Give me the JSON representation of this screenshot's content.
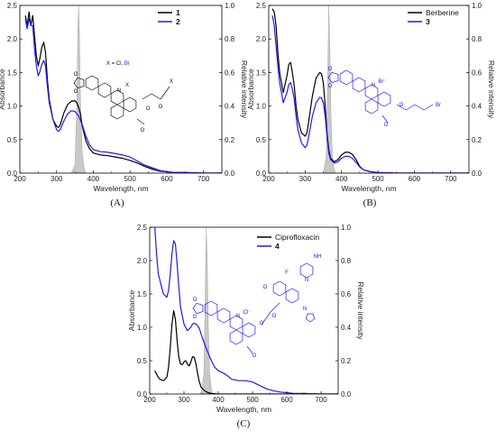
{
  "chart_data": [
    {
      "id": "A",
      "type": "line",
      "caption": "(A)",
      "xlabel": "Wavelength, nm",
      "ylabel": "Absorbance",
      "ylabel_right": "Relative intensity",
      "xlim": [
        200,
        750
      ],
      "ylim": [
        0,
        2.5
      ],
      "ylim_right": [
        0,
        1.0
      ],
      "xticks": [
        200,
        300,
        400,
        500,
        600,
        700
      ],
      "yticks": [
        0.0,
        0.5,
        1.0,
        1.5,
        2.0,
        2.5
      ],
      "yticks_right": [
        0.0,
        0.2,
        0.4,
        0.6,
        0.8,
        1.0
      ],
      "structure_label": {
        "prefix": "X = Cl, ",
        "highlight": "Br",
        "highlight_color": "#1a1aff"
      },
      "structure_atoms": [
        "O",
        "O",
        "O",
        "O",
        "O",
        "N",
        "X",
        "X"
      ],
      "emission": {
        "color": "#c8c8c8",
        "x": [
          340,
          350,
          355,
          358,
          360,
          362,
          365,
          370,
          375,
          380
        ],
        "y": [
          0,
          0.05,
          0.4,
          0.85,
          1.0,
          0.85,
          0.45,
          0.12,
          0.03,
          0
        ]
      },
      "series": [
        {
          "name": "1",
          "color": "#000000",
          "x": [
            215,
            220,
            225,
            230,
            235,
            240,
            245,
            250,
            255,
            260,
            265,
            270,
            275,
            280,
            290,
            300,
            305,
            310,
            320,
            330,
            340,
            350,
            355,
            360,
            365,
            370,
            380,
            390,
            400,
            420,
            440,
            460,
            480,
            500,
            520,
            540,
            560,
            580,
            600,
            620,
            650,
            700,
            750
          ],
          "y": [
            2.35,
            2.2,
            2.4,
            2.2,
            2.35,
            2.05,
            1.75,
            1.6,
            1.72,
            1.88,
            1.95,
            1.8,
            1.4,
            1.1,
            0.8,
            0.7,
            0.68,
            0.72,
            0.9,
            1.02,
            1.07,
            1.08,
            1.05,
            0.98,
            0.88,
            0.7,
            0.48,
            0.36,
            0.3,
            0.27,
            0.26,
            0.24,
            0.22,
            0.19,
            0.15,
            0.1,
            0.06,
            0.03,
            0.02,
            0.01,
            0.01,
            0.0,
            0.0
          ]
        },
        {
          "name": "2",
          "color": "#1a1aff",
          "x": [
            215,
            220,
            225,
            230,
            235,
            240,
            245,
            250,
            255,
            260,
            265,
            270,
            275,
            280,
            290,
            300,
            305,
            310,
            320,
            330,
            340,
            350,
            360,
            370,
            380,
            390,
            400,
            420,
            440,
            460,
            480,
            500,
            520,
            540,
            560,
            580,
            600,
            620,
            650,
            700,
            750
          ],
          "y": [
            2.3,
            2.15,
            2.3,
            2.2,
            2.2,
            1.85,
            1.6,
            1.45,
            1.52,
            1.62,
            1.68,
            1.6,
            1.3,
            1.05,
            0.8,
            0.65,
            0.62,
            0.65,
            0.78,
            0.88,
            0.93,
            0.92,
            0.85,
            0.72,
            0.55,
            0.42,
            0.35,
            0.32,
            0.31,
            0.29,
            0.27,
            0.24,
            0.18,
            0.12,
            0.08,
            0.04,
            0.02,
            0.01,
            0.01,
            0.0,
            0.0
          ]
        }
      ]
    },
    {
      "id": "B",
      "type": "line",
      "caption": "(B)",
      "xlabel": "Wavelength, nm",
      "ylabel": "Absorbance",
      "ylabel_right": "Relative intensity",
      "xlim": [
        200,
        750
      ],
      "ylim": [
        0,
        2.5
      ],
      "ylim_right": [
        0,
        1.0
      ],
      "xticks": [
        200,
        300,
        400,
        500,
        600,
        700
      ],
      "yticks": [
        0.0,
        0.5,
        1.0,
        1.5,
        2.0,
        2.5
      ],
      "yticks_right": [
        0.0,
        0.2,
        0.4,
        0.6,
        0.8,
        1.0
      ],
      "structure_atoms": [
        "O",
        "O",
        "O",
        "O",
        "N",
        "Br⁻",
        "Br"
      ],
      "emission": {
        "color": "#c8c8c8",
        "x": [
          350,
          358,
          362,
          365,
          368,
          371,
          375,
          380,
          385
        ],
        "y": [
          0,
          0.1,
          0.6,
          1.0,
          0.75,
          0.35,
          0.1,
          0.02,
          0
        ]
      },
      "series": [
        {
          "name": "Berberine",
          "color": "#000000",
          "x": [
            210,
            215,
            220,
            225,
            230,
            240,
            250,
            255,
            260,
            265,
            270,
            275,
            280,
            290,
            300,
            305,
            310,
            320,
            330,
            340,
            345,
            350,
            355,
            360,
            365,
            370,
            380,
            390,
            400,
            410,
            420,
            430,
            440,
            450,
            460,
            480,
            500,
            550,
            600,
            650,
            700,
            750
          ],
          "y": [
            2.45,
            2.4,
            2.2,
            1.8,
            1.5,
            1.2,
            1.45,
            1.62,
            1.65,
            1.5,
            1.3,
            1.0,
            0.8,
            0.6,
            0.55,
            0.6,
            0.78,
            1.15,
            1.42,
            1.5,
            1.48,
            1.35,
            1.0,
            0.6,
            0.35,
            0.22,
            0.17,
            0.2,
            0.27,
            0.31,
            0.31,
            0.28,
            0.2,
            0.1,
            0.05,
            0.02,
            0.01,
            0.0,
            0.0,
            0.0,
            0.0,
            0.0
          ]
        },
        {
          "name": "3",
          "color": "#1a1aff",
          "x": [
            210,
            215,
            220,
            225,
            230,
            240,
            250,
            255,
            260,
            265,
            270,
            275,
            280,
            290,
            300,
            305,
            310,
            320,
            330,
            340,
            345,
            350,
            355,
            360,
            365,
            370,
            380,
            390,
            400,
            410,
            420,
            430,
            440,
            450,
            460,
            480,
            500,
            550,
            600,
            650,
            700,
            750
          ],
          "y": [
            2.35,
            2.2,
            1.9,
            1.6,
            1.35,
            1.05,
            1.2,
            1.32,
            1.35,
            1.25,
            1.1,
            0.85,
            0.65,
            0.45,
            0.38,
            0.42,
            0.55,
            0.85,
            1.05,
            1.13,
            1.12,
            1.05,
            0.85,
            0.55,
            0.3,
            0.2,
            0.15,
            0.17,
            0.22,
            0.25,
            0.25,
            0.22,
            0.16,
            0.09,
            0.05,
            0.02,
            0.01,
            0.0,
            0.0,
            0.0,
            0.0,
            0.0
          ]
        }
      ]
    },
    {
      "id": "C",
      "type": "line",
      "caption": "(C)",
      "xlabel": "Wavelength, nm",
      "ylabel": "Absorbance",
      "ylabel_right": "Relative intensity",
      "xlim": [
        200,
        750
      ],
      "ylim": [
        0,
        2.5
      ],
      "ylim_right": [
        0,
        1.0
      ],
      "xticks": [
        200,
        300,
        400,
        500,
        600,
        700
      ],
      "yticks": [
        0.0,
        0.5,
        1.0,
        1.5,
        2.0,
        2.5
      ],
      "yticks_right": [
        0.0,
        0.2,
        0.4,
        0.6,
        0.8,
        1.0
      ],
      "structure_atoms": [
        "O",
        "O",
        "O",
        "O",
        "O",
        "O",
        "N",
        "N",
        "N",
        "NH",
        "F",
        "Cl⁻"
      ],
      "emission": {
        "color": "#c8c8c8",
        "x": [
          350,
          358,
          362,
          365,
          368,
          371,
          375,
          380,
          385
        ],
        "y": [
          0,
          0.12,
          0.6,
          1.0,
          0.8,
          0.4,
          0.12,
          0.03,
          0
        ]
      },
      "series": [
        {
          "name": "Ciprofloxacin",
          "color": "#000000",
          "x": [
            215,
            220,
            225,
            230,
            240,
            250,
            255,
            260,
            265,
            270,
            275,
            280,
            285,
            290,
            295,
            300,
            305,
            310,
            315,
            320,
            325,
            330,
            335,
            340,
            345,
            350,
            360,
            370,
            380,
            400,
            450,
            500,
            600,
            700,
            750
          ],
          "y": [
            0.35,
            0.3,
            0.25,
            0.22,
            0.2,
            0.25,
            0.4,
            0.7,
            1.05,
            1.25,
            1.12,
            0.8,
            0.55,
            0.45,
            0.44,
            0.48,
            0.5,
            0.45,
            0.42,
            0.48,
            0.56,
            0.55,
            0.45,
            0.3,
            0.18,
            0.1,
            0.05,
            0.02,
            0.01,
            0.0,
            0.0,
            0.0,
            0.0,
            0.0,
            0.0
          ]
        },
        {
          "name": "4",
          "color": "#1a1aff",
          "x": [
            215,
            220,
            225,
            230,
            240,
            250,
            255,
            260,
            265,
            270,
            275,
            280,
            285,
            290,
            300,
            310,
            320,
            325,
            330,
            335,
            340,
            345,
            350,
            360,
            370,
            380,
            390,
            400,
            420,
            440,
            460,
            480,
            500,
            520,
            540,
            560,
            580,
            600,
            620,
            650,
            700,
            750
          ],
          "y": [
            2.5,
            2.1,
            1.8,
            1.7,
            1.5,
            1.45,
            1.55,
            1.8,
            2.1,
            2.3,
            2.25,
            1.95,
            1.6,
            1.3,
            1.05,
            0.95,
            1.0,
            1.05,
            1.06,
            1.05,
            1.02,
            0.98,
            0.9,
            0.75,
            0.62,
            0.5,
            0.4,
            0.35,
            0.3,
            0.22,
            0.2,
            0.2,
            0.18,
            0.13,
            0.08,
            0.05,
            0.03,
            0.02,
            0.01,
            0.01,
            0.0,
            0.0
          ]
        }
      ]
    }
  ]
}
